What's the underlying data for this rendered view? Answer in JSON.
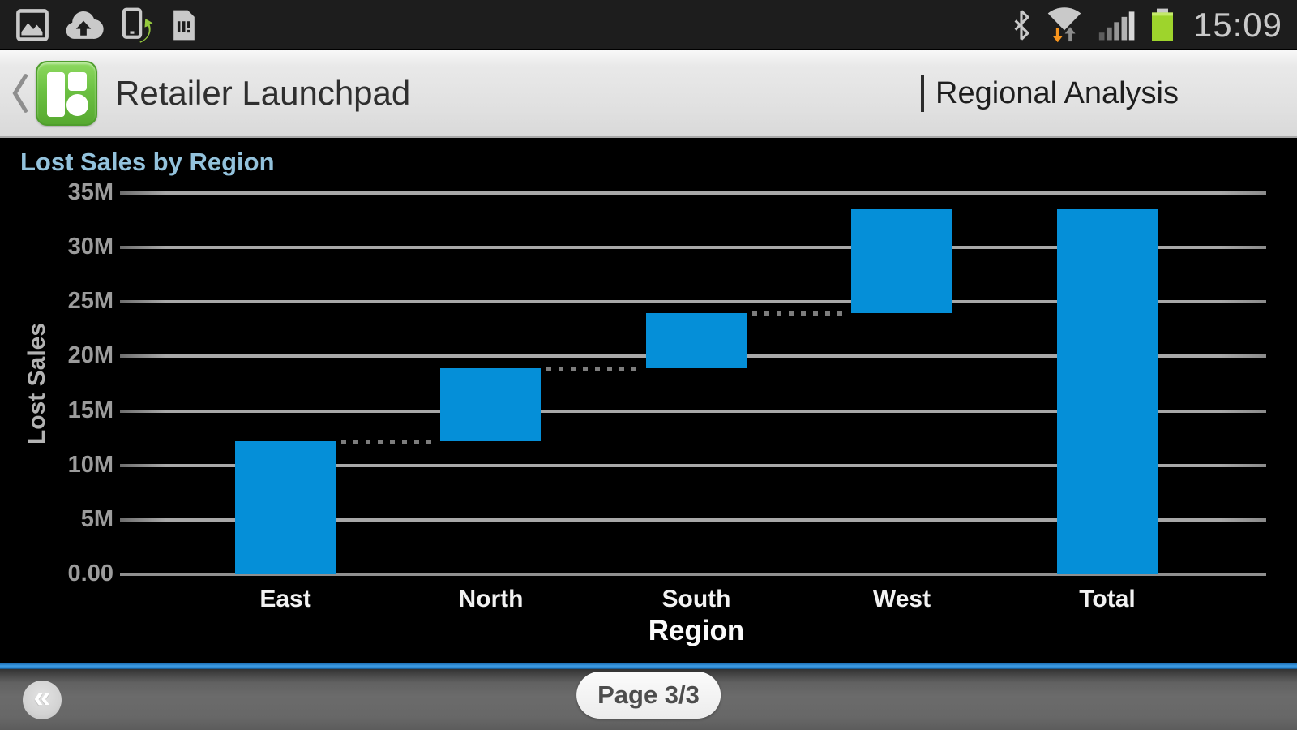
{
  "status_bar": {
    "time": "15:09",
    "left_icons": [
      "gallery-icon",
      "cloud-upload-icon",
      "smart-network-icon",
      "sim-alert-icon"
    ],
    "right_icons": [
      "bluetooth-icon",
      "wifi-icon",
      "signal-icon",
      "battery-icon"
    ],
    "colors": {
      "background": "#1d1d1d",
      "icon": "#c9c9c9",
      "battery_green": "#9ed42c",
      "wifi_arrow_orange": "#f7941d",
      "time": "#c9c9c9"
    }
  },
  "header": {
    "back_glyph": "‹",
    "app_title": "Retailer Launchpad",
    "page_title": "Regional Analysis",
    "colors": {
      "background": "#e2e2e2",
      "title": "#2f2f2f",
      "logo_green": "#6cc143"
    }
  },
  "chart_data": {
    "type": "bar",
    "subtype": "waterfall",
    "title": "Lost Sales by Region",
    "xlabel": "Region",
    "ylabel": "Lost Sales",
    "categories": [
      "East",
      "North",
      "South",
      "West",
      "Total"
    ],
    "series": [
      {
        "name": "Lost Sales",
        "start": [
          0,
          12.2,
          18.9,
          24.0,
          0
        ],
        "end": [
          12.2,
          18.9,
          24.0,
          33.5,
          33.5
        ],
        "delta": [
          12.2,
          6.7,
          5.1,
          9.5,
          33.5
        ]
      }
    ],
    "unit": "M",
    "ylim": [
      0,
      35
    ],
    "yticks": [
      {
        "value": 0,
        "label": "0.00"
      },
      {
        "value": 5,
        "label": "5M"
      },
      {
        "value": 10,
        "label": "10M"
      },
      {
        "value": 15,
        "label": "15M"
      },
      {
        "value": 20,
        "label": "20M"
      },
      {
        "value": 25,
        "label": "25M"
      },
      {
        "value": 30,
        "label": "30M"
      },
      {
        "value": 35,
        "label": "35M"
      }
    ],
    "grid": true,
    "legend": "none",
    "connectors": "dotted",
    "colors": {
      "bar": "#058fd8",
      "gridline": "#9a9a9a",
      "title": "#93c2dc",
      "tick_label": "#9c9c9c",
      "category_label": "#f2f2f2",
      "background": "#000000"
    }
  },
  "footer": {
    "page_indicator": "Page 3/3",
    "back_button_glyph": "«",
    "colors": {
      "bar": "#666666",
      "accent_line": "#2b86cd",
      "pill_background": "#f2f2f2",
      "pill_text": "#4d4d4d"
    }
  }
}
